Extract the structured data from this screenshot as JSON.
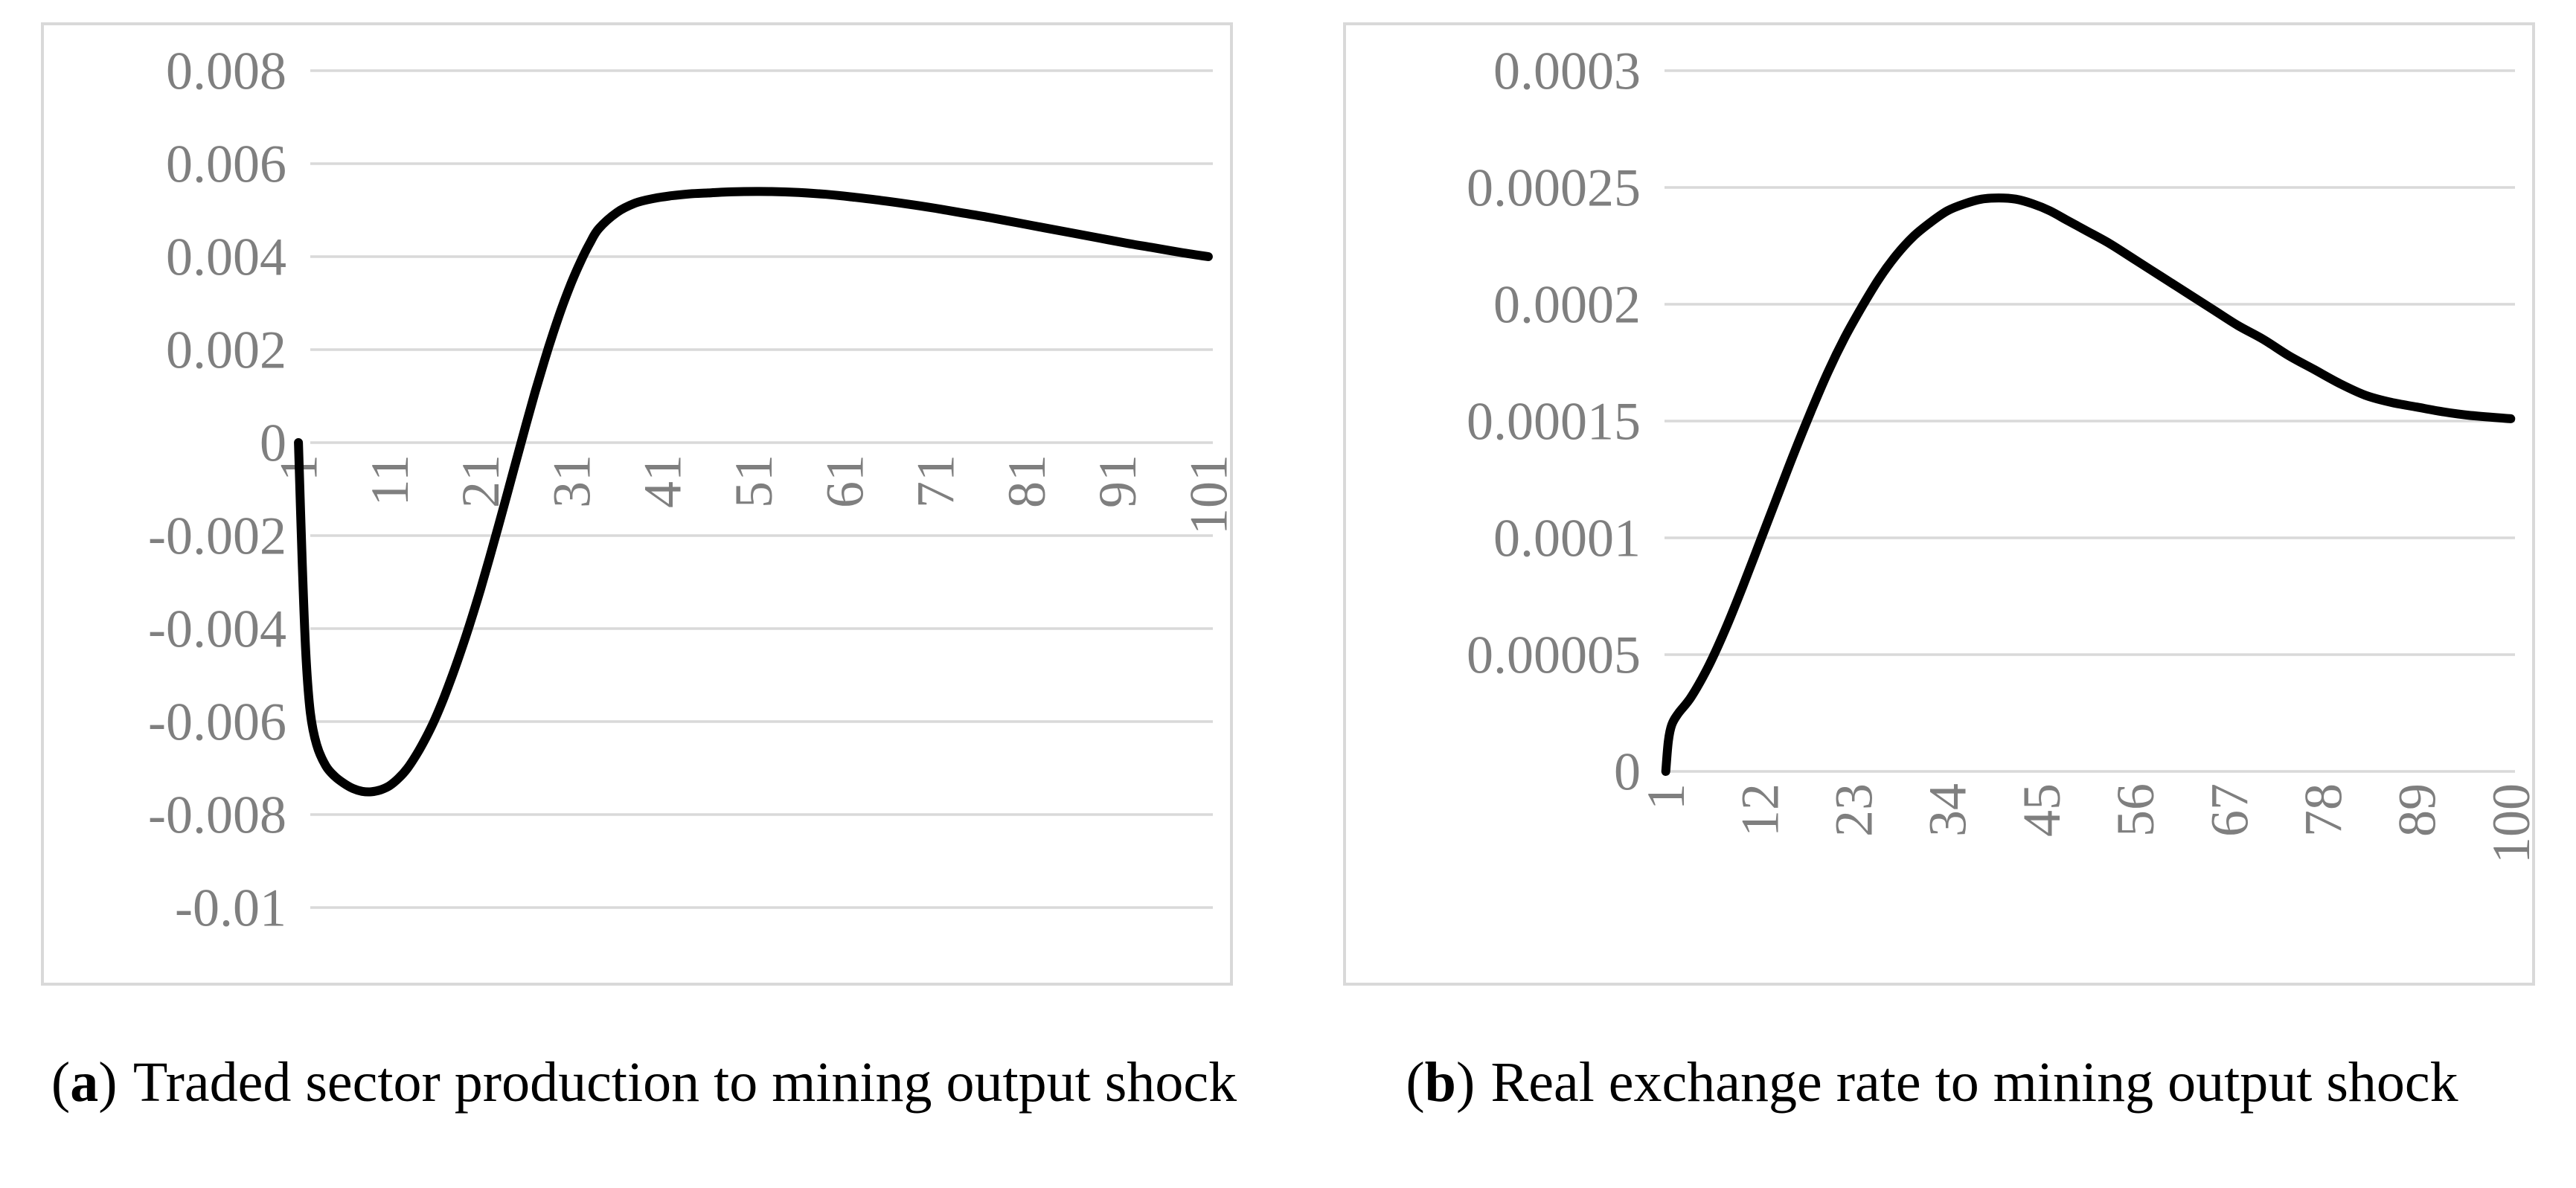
{
  "style": {
    "background": "#ffffff",
    "line_color": "#000000",
    "gridline_color": "#d9d9d9",
    "border_color": "#d9d9d9",
    "tick_label_color": "#7f7f7f",
    "caption_color": "#000000"
  },
  "captions": {
    "a": {
      "open": "(",
      "letter": "a",
      "close": ")",
      "text": "Traded sector production to mining output shock"
    },
    "b": {
      "open": "(",
      "letter": "b",
      "close": ")",
      "text": "Real exchange rate to mining output shock"
    }
  },
  "chart_data": [
    {
      "type": "line",
      "title": "",
      "caption": "(a) Traded sector production to mining output shock",
      "legend": "none",
      "grid": "horizontal",
      "x_axis": {
        "kind": "category",
        "count": 101,
        "range": [
          1,
          101
        ],
        "tick_labels": [
          "1",
          "11",
          "21",
          "31",
          "41",
          "51",
          "61",
          "71",
          "81",
          "91",
          "101"
        ],
        "tick_values": [
          1,
          11,
          21,
          31,
          41,
          51,
          61,
          71,
          81,
          91,
          101
        ],
        "label_rotation_deg": -90,
        "axis_at_value": 0
      },
      "y_axis": {
        "range": [
          -0.01,
          0.008
        ],
        "ticks": [
          {
            "label": "0.008",
            "value": 0.008
          },
          {
            "label": "0.006",
            "value": 0.006
          },
          {
            "label": "0.004",
            "value": 0.004
          },
          {
            "label": "0.002",
            "value": 0.002
          },
          {
            "label": "0",
            "value": 0
          },
          {
            "label": "-0.002",
            "value": -0.002
          },
          {
            "label": "-0.004",
            "value": -0.004
          },
          {
            "label": "-0.006",
            "value": -0.006
          },
          {
            "label": "-0.008",
            "value": -0.008
          },
          {
            "label": "-0.01",
            "value": -0.01
          }
        ]
      },
      "series": [
        {
          "name": "traded-sector-production-irf",
          "color": "#000000",
          "points": [
            [
              1,
              0
            ],
            [
              1.4,
              -0.0025
            ],
            [
              1.8,
              -0.0045
            ],
            [
              2.3,
              -0.0058
            ],
            [
              3,
              -0.0065
            ],
            [
              4,
              -0.00695
            ],
            [
              5,
              -0.00718
            ],
            [
              6,
              -0.00733
            ],
            [
              7,
              -0.00744
            ],
            [
              8,
              -0.0075
            ],
            [
              9,
              -0.00751
            ],
            [
              10,
              -0.00747
            ],
            [
              11,
              -0.00738
            ],
            [
              12,
              -0.00722
            ],
            [
              13,
              -0.007
            ],
            [
              14,
              -0.0067
            ],
            [
              15,
              -0.00635
            ],
            [
              16,
              -0.00595
            ],
            [
              17,
              -0.00548
            ],
            [
              18,
              -0.00496
            ],
            [
              19,
              -0.0044
            ],
            [
              20,
              -0.0038
            ],
            [
              21,
              -0.00316
            ],
            [
              22,
              -0.00248
            ],
            [
              23,
              -0.00178
            ],
            [
              24,
              -0.00106
            ],
            [
              25,
              -0.00034
            ],
            [
              26,
              0.00038
            ],
            [
              27,
              0.00108
            ],
            [
              28,
              0.00174
            ],
            [
              29,
              0.00236
            ],
            [
              30,
              0.00293
            ],
            [
              31,
              0.00344
            ],
            [
              32,
              0.00389
            ],
            [
              33,
              0.00428
            ],
            [
              34,
              0.0046
            ],
            [
              36,
              0.00495
            ],
            [
              38,
              0.00515
            ],
            [
              40,
              0.00525
            ],
            [
              42,
              0.00531
            ],
            [
              44,
              0.00535
            ],
            [
              46,
              0.00537
            ],
            [
              48,
              0.00539
            ],
            [
              50,
              0.0054
            ],
            [
              53,
              0.0054
            ],
            [
              56,
              0.00538
            ],
            [
              59,
              0.00534
            ],
            [
              62,
              0.00528
            ],
            [
              65,
              0.00521
            ],
            [
              68,
              0.00513
            ],
            [
              71,
              0.00504
            ],
            [
              74,
              0.00494
            ],
            [
              77,
              0.00484
            ],
            [
              80,
              0.00473
            ],
            [
              83,
              0.00462
            ],
            [
              86,
              0.00451
            ],
            [
              89,
              0.0044
            ],
            [
              92,
              0.00429
            ],
            [
              95,
              0.00419
            ],
            [
              98,
              0.00409
            ],
            [
              101,
              0.004
            ]
          ]
        }
      ]
    },
    {
      "type": "line",
      "title": "",
      "caption": "(b) Real exchange rate to mining output shock",
      "legend": "none",
      "grid": "horizontal",
      "x_axis": {
        "kind": "category",
        "count": 100,
        "range": [
          1,
          100
        ],
        "tick_labels": [
          "1",
          "12",
          "23",
          "34",
          "45",
          "56",
          "67",
          "78",
          "89",
          "100"
        ],
        "tick_values": [
          1,
          12,
          23,
          34,
          45,
          56,
          67,
          78,
          89,
          100
        ],
        "label_rotation_deg": -90,
        "axis_at_value": 0
      },
      "y_axis": {
        "range": [
          0,
          0.0003
        ],
        "ticks": [
          {
            "label": "0.0003",
            "value": 0.0003
          },
          {
            "label": "0.00025",
            "value": 0.00025
          },
          {
            "label": "0.0002",
            "value": 0.0002
          },
          {
            "label": "0.00015",
            "value": 0.00015
          },
          {
            "label": "0.0001",
            "value": 0.0001
          },
          {
            "label": "0.00005",
            "value": 5e-05
          },
          {
            "label": "0",
            "value": 0
          }
        ]
      },
      "series": [
        {
          "name": "real-exchange-rate-irf",
          "color": "#000000",
          "points": [
            [
              1,
              0
            ],
            [
              1.3,
              1.3e-05
            ],
            [
              1.7,
              2e-05
            ],
            [
              2.5,
              2.5e-05
            ],
            [
              4,
              3.2e-05
            ],
            [
              6,
              4.5e-05
            ],
            [
              8,
              6.1e-05
            ],
            [
              10,
              7.9e-05
            ],
            [
              12,
              9.8e-05
            ],
            [
              14,
              0.000117
            ],
            [
              16,
              0.000136
            ],
            [
              18,
              0.000154
            ],
            [
              20,
              0.000171
            ],
            [
              22,
              0.000186
            ],
            [
              24,
              0.000199
            ],
            [
              26,
              0.000211
            ],
            [
              28,
              0.000221
            ],
            [
              30,
              0.000229
            ],
            [
              32,
              0.000235
            ],
            [
              34,
              0.00024
            ],
            [
              36,
              0.000243
            ],
            [
              38,
              0.000245
            ],
            [
              40,
              0.0002455
            ],
            [
              42,
              0.000245
            ],
            [
              44,
              0.000243
            ],
            [
              46,
              0.00024
            ],
            [
              48,
              0.000236
            ],
            [
              50,
              0.000232
            ],
            [
              53,
              0.000226
            ],
            [
              56,
              0.000219
            ],
            [
              59,
              0.000212
            ],
            [
              62,
              0.000205
            ],
            [
              65,
              0.000198
            ],
            [
              68,
              0.000191
            ],
            [
              71,
              0.000185
            ],
            [
              74,
              0.000178
            ],
            [
              77,
              0.000172
            ],
            [
              80,
              0.000166
            ],
            [
              83,
              0.000161
            ],
            [
              86,
              0.000158
            ],
            [
              89,
              0.000156
            ],
            [
              92,
              0.000154
            ],
            [
              95,
              0.0001525
            ],
            [
              100,
              0.000151
            ]
          ]
        }
      ]
    }
  ]
}
